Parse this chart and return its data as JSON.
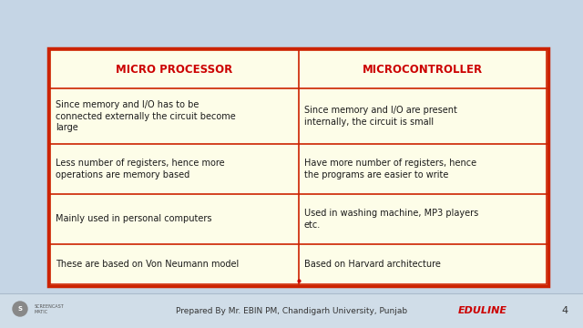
{
  "bg_color": "#c5d5e5",
  "table_bg": "#fdfde8",
  "border_color": "#cc2200",
  "header_color": "#cc0000",
  "text_color": "#1a1a1a",
  "header1": "MICRO PROCESSOR",
  "header2": "MICROCONTROLLER",
  "rows": [
    [
      "Since memory and I/O has to be\nconnected externally the circuit become\nlarge",
      "Since memory and I/O are present\ninternally, the circuit is small"
    ],
    [
      "Less number of registers, hence more\noperations are memory based",
      "Have more number of registers, hence\nthe programs are easier to write"
    ],
    [
      "Mainly used in personal computers",
      "Used in washing machine, MP3 players\netc."
    ],
    [
      "These are based on Von Neumann model",
      "Based on Harvard architecture"
    ]
  ],
  "footer_text": "Prepared By Mr. EBIN PM, Chandigarh University, Punjab",
  "footer_brand": "EDULINE",
  "footer_page": "4",
  "footer_color": "#cc0000",
  "footer_text_color": "#333333",
  "header_fontsize": 8.5,
  "cell_fontsize": 7.0,
  "footer_fontsize": 6.5,
  "footer_brand_fontsize": 8.0
}
